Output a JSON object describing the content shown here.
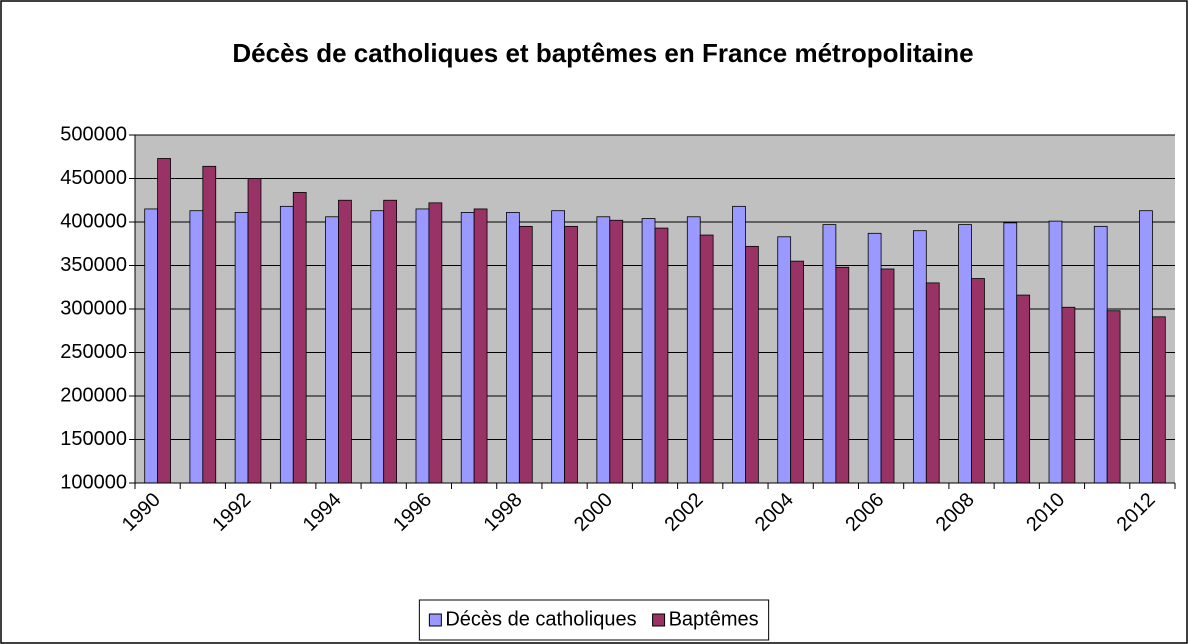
{
  "chart_data": {
    "type": "bar",
    "title": "Décès de catholiques et baptêmes en France métropolitaine",
    "categories": [
      "1990",
      null,
      "1992",
      null,
      "1994",
      null,
      "1996",
      null,
      "1998",
      null,
      "2000",
      null,
      "2002",
      null,
      "2004",
      null,
      "2006",
      null,
      "2008",
      null,
      "2010",
      null,
      "2012"
    ],
    "series": [
      {
        "name": "Décès de catholiques",
        "color": "#9999ff",
        "values": [
          415000,
          413000,
          411000,
          418000,
          406000,
          413000,
          415000,
          411000,
          411000,
          413000,
          406000,
          404000,
          406000,
          418000,
          383000,
          397000,
          387000,
          390000,
          397000,
          399000,
          401000,
          395000,
          413000
        ]
      },
      {
        "name": "Baptêmes",
        "color": "#993366",
        "values": [
          473000,
          464000,
          450000,
          434000,
          425000,
          425000,
          422000,
          415000,
          395000,
          395000,
          402000,
          393000,
          385000,
          372000,
          355000,
          348000,
          346000,
          330000,
          335000,
          316000,
          302000,
          298000,
          291000
        ]
      }
    ],
    "ylim": [
      100000,
      500000
    ],
    "yticks": [
      100000,
      150000,
      200000,
      250000,
      300000,
      350000,
      400000,
      450000,
      500000
    ],
    "grid": true,
    "legend": "bottom",
    "plot_background": "#c0c0c0"
  }
}
